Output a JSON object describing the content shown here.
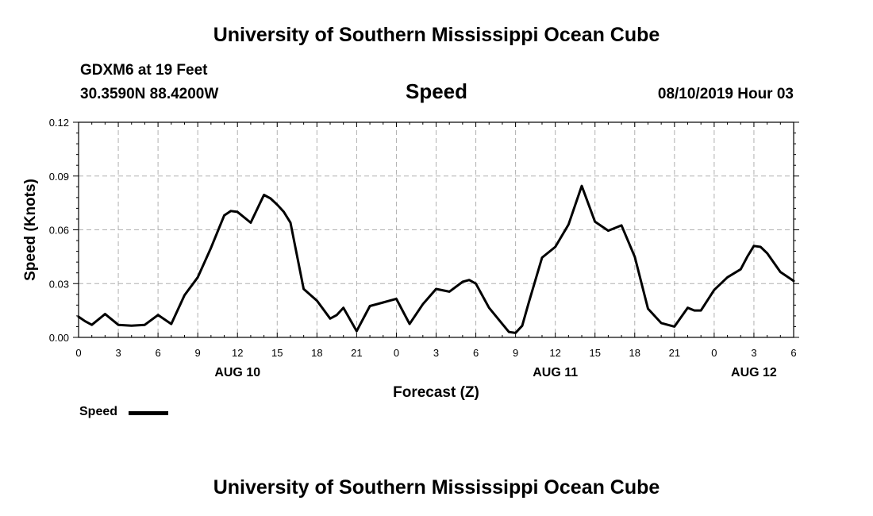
{
  "header": {
    "title_top": "University of Southern Mississippi Ocean Cube",
    "station": "GDXM6 at 19 Feet",
    "coords": "30.3590N 88.4200W",
    "timestamp": "08/10/2019 Hour 03",
    "title_bottom": "University of Southern Mississippi Ocean Cube"
  },
  "colors": {
    "line": "#000000",
    "grid": "#b0b0b0",
    "background": "#ffffff"
  },
  "chart_data": {
    "type": "line",
    "title": "Speed",
    "xlabel": "Forecast (Z)",
    "ylabel": "Speed (Knots)",
    "ylim": [
      0,
      0.12
    ],
    "yticks": [
      "0.00",
      "0.03",
      "0.06",
      "0.09",
      "0.12"
    ],
    "xlim": [
      0,
      54
    ],
    "xticks": [
      {
        "x": 0,
        "label": "0"
      },
      {
        "x": 3,
        "label": "3"
      },
      {
        "x": 6,
        "label": "6"
      },
      {
        "x": 9,
        "label": "9"
      },
      {
        "x": 12,
        "label": "12"
      },
      {
        "x": 15,
        "label": "15"
      },
      {
        "x": 18,
        "label": "18"
      },
      {
        "x": 21,
        "label": "21"
      },
      {
        "x": 24,
        "label": "0"
      },
      {
        "x": 27,
        "label": "3"
      },
      {
        "x": 30,
        "label": "6"
      },
      {
        "x": 33,
        "label": "9"
      },
      {
        "x": 36,
        "label": "12"
      },
      {
        "x": 39,
        "label": "15"
      },
      {
        "x": 42,
        "label": "18"
      },
      {
        "x": 45,
        "label": "21"
      },
      {
        "x": 48,
        "label": "0"
      },
      {
        "x": 51,
        "label": "3"
      },
      {
        "x": 54,
        "label": "6"
      }
    ],
    "day_labels": [
      {
        "x": 12,
        "label": "AUG 10"
      },
      {
        "x": 36,
        "label": "AUG 11"
      },
      {
        "x": 51,
        "label": "AUG 12"
      }
    ],
    "grid": true,
    "legend": "bottom-left",
    "series": [
      {
        "name": "Speed",
        "x": [
          0,
          0.5,
          1,
          2,
          3,
          4,
          5,
          6,
          7,
          8,
          9,
          10,
          11,
          11.5,
          12,
          13,
          14,
          14.5,
          15,
          15.5,
          16,
          17,
          18,
          19,
          19.5,
          20,
          21,
          22,
          23,
          24,
          25,
          26,
          27,
          28,
          29,
          29.5,
          30,
          31,
          32,
          32.5,
          33,
          33.5,
          34,
          35,
          36,
          37,
          38,
          39,
          40,
          41,
          42,
          43,
          44,
          45,
          46,
          46.5,
          47,
          48,
          49,
          50,
          50.5,
          51,
          51.5,
          52,
          53,
          54
        ],
        "values": [
          0.0115,
          0.009,
          0.007,
          0.013,
          0.007,
          0.0065,
          0.007,
          0.0125,
          0.0075,
          0.0235,
          0.0335,
          0.05,
          0.068,
          0.0705,
          0.07,
          0.064,
          0.0795,
          0.0775,
          0.074,
          0.07,
          0.064,
          0.027,
          0.0205,
          0.0105,
          0.0125,
          0.0165,
          0.0035,
          0.0175,
          0.0195,
          0.0215,
          0.0075,
          0.0185,
          0.027,
          0.0255,
          0.031,
          0.032,
          0.03,
          0.0165,
          0.0075,
          0.003,
          0.0025,
          0.0065,
          0.0195,
          0.0445,
          0.0505,
          0.063,
          0.0845,
          0.0645,
          0.0595,
          0.0625,
          0.045,
          0.016,
          0.008,
          0.006,
          0.0165,
          0.015,
          0.015,
          0.0265,
          0.0335,
          0.038,
          0.045,
          0.051,
          0.0505,
          0.047,
          0.0365,
          0.0315
        ]
      }
    ]
  },
  "legend": {
    "label": "Speed"
  }
}
